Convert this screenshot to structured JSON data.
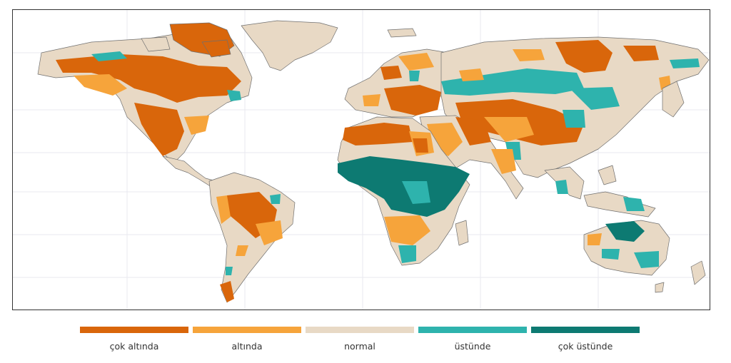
{
  "legend": {
    "items": [
      {
        "label": "çok altında",
        "color": "#d9660b"
      },
      {
        "label": "altında",
        "color": "#f6a43b"
      },
      {
        "label": "normal",
        "color": "#e8d9c5"
      },
      {
        "label": "üstünde",
        "color": "#2eb3ad"
      },
      {
        "label": "çok üstünde",
        "color": "#0d7a72"
      }
    ]
  },
  "map": {
    "background_color": "#ffffff",
    "border_color": "#333333",
    "grid": true
  }
}
